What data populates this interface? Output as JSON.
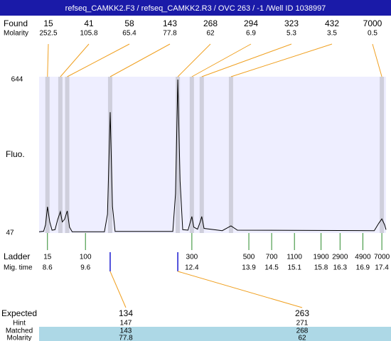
{
  "header": {
    "title": "refseq_CAMKK2.F3 / refseq_CAMKK2.R3 / OVC 263 / -1 /Well ID 1038997"
  },
  "found": {
    "label": "Found",
    "molarity_label": "Molarity",
    "peaks": [
      {
        "size": 15,
        "molarity": 252.5,
        "time": 8.6
      },
      {
        "size": 41,
        "molarity": 105.8,
        "time": 8.94
      },
      {
        "size": 58,
        "molarity": 65.4,
        "time": 9.12
      },
      {
        "size": 143,
        "molarity": 77.8,
        "time": 10.25
      },
      {
        "size": 268,
        "molarity": 62,
        "time": 12.03
      },
      {
        "size": 294,
        "molarity": 6.9,
        "time": 12.4
      },
      {
        "size": 323,
        "molarity": 5.3,
        "time": 12.66
      },
      {
        "size": 432,
        "molarity": 3.5,
        "time": 13.43
      },
      {
        "size": 7000,
        "molarity": 0.5,
        "time": 17.4
      }
    ]
  },
  "axis": {
    "label": "Fluo.",
    "ymax": 644,
    "ymin": 47,
    "time_range": [
      8.38,
      17.51
    ]
  },
  "trace": {
    "time": [
      8.38,
      8.5,
      8.55,
      8.6,
      8.66,
      8.72,
      8.8,
      8.87,
      8.94,
      8.99,
      9.05,
      9.12,
      9.18,
      9.25,
      10.1,
      10.18,
      10.25,
      10.31,
      10.38,
      11.9,
      11.97,
      12.03,
      12.09,
      12.16,
      12.3,
      12.36,
      12.4,
      12.45,
      12.55,
      12.62,
      12.66,
      12.72,
      13.2,
      13.43,
      13.6,
      17.2,
      17.32,
      17.4,
      17.47,
      17.51
    ],
    "fluo": [
      52,
      54,
      80,
      149,
      90,
      58,
      60,
      100,
      130,
      90,
      100,
      133,
      70,
      52,
      52,
      120,
      517,
      150,
      53,
      53,
      200,
      644,
      250,
      60,
      58,
      90,
      111,
      70,
      62,
      90,
      111,
      65,
      56,
      75,
      58,
      56,
      85,
      102,
      80,
      60
    ]
  },
  "ladder": {
    "label": "Ladder",
    "time_label": "Mig. time",
    "sizes": [
      15,
      100,
      300,
      500,
      700,
      1100,
      1900,
      2900,
      4900,
      7000
    ],
    "times": [
      8.6,
      9.6,
      12.4,
      13.9,
      14.5,
      15.1,
      15.8,
      16.3,
      16.9,
      17.4
    ]
  },
  "expected": {
    "label": "Expected",
    "hint_label": "Hint",
    "matched_label": "Matched",
    "molarity_label": "Molarity",
    "items": [
      {
        "expected": 134,
        "hint": 147,
        "matched": 143,
        "molarity": 77.8
      },
      {
        "expected": 263,
        "hint": 271,
        "matched": 268,
        "molarity": 62
      }
    ]
  }
}
